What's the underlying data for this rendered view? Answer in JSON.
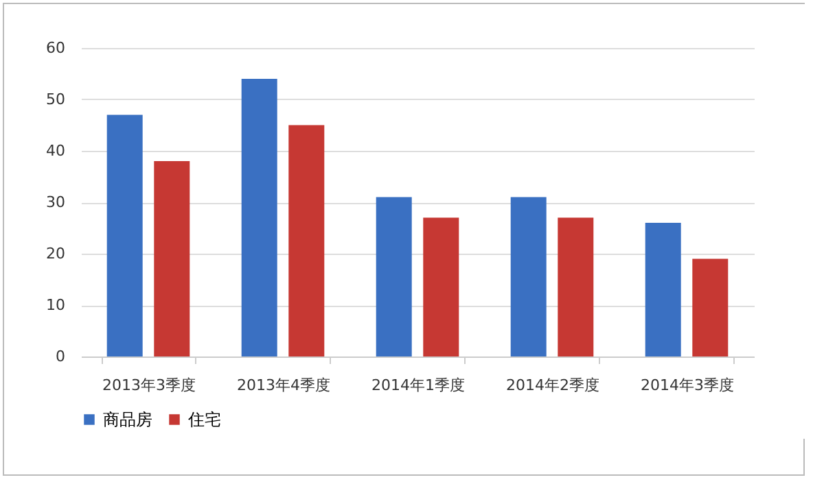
{
  "chart_data": {
    "type": "bar",
    "categories": [
      "2013年3季度",
      "2013年4季度",
      "2014年1季度",
      "2014年2季度",
      "2014年3季度"
    ],
    "series": [
      {
        "name": "商品房",
        "color": "#3a70c2",
        "values": [
          47,
          54,
          31,
          31,
          26
        ]
      },
      {
        "name": "住宅",
        "color": "#c63833",
        "values": [
          38,
          45,
          27,
          27,
          19
        ]
      }
    ],
    "ylim": [
      0,
      60
    ],
    "yticks": [
      0,
      10,
      20,
      30,
      40,
      50,
      60
    ],
    "grid": "y",
    "legend": "bottom"
  }
}
